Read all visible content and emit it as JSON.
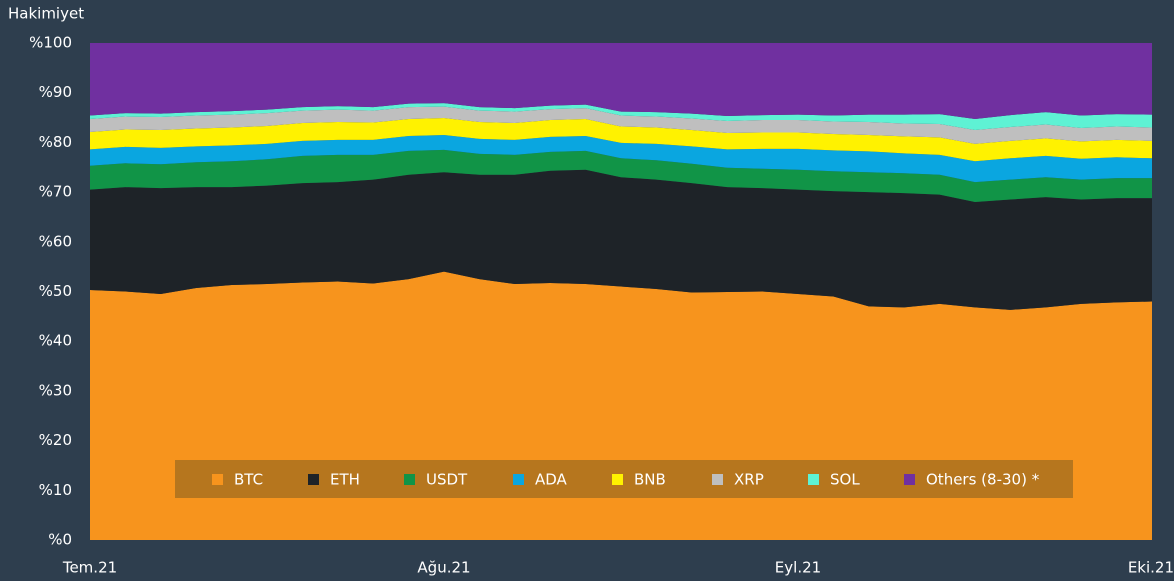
{
  "chart_data": {
    "type": "stacked-area",
    "y_axis_label": "Hakimiyet",
    "categories": [
      "Tem.21",
      null,
      null,
      null,
      null,
      null,
      null,
      null,
      null,
      null,
      "Ağu.21",
      null,
      null,
      null,
      null,
      null,
      null,
      null,
      null,
      null,
      "Eyl.21",
      null,
      null,
      null,
      null,
      null,
      null,
      null,
      null,
      null,
      "Eki.21"
    ],
    "ylim": [
      0,
      100
    ],
    "yticks": [
      {
        "value": 0,
        "label": "%0"
      },
      {
        "value": 10,
        "label": "%10"
      },
      {
        "value": 20,
        "label": "%20"
      },
      {
        "value": 30,
        "label": "%30"
      },
      {
        "value": 40,
        "label": "%40"
      },
      {
        "value": 50,
        "label": "%50"
      },
      {
        "value": 60,
        "label": "%60"
      },
      {
        "value": 70,
        "label": "%70"
      },
      {
        "value": 80,
        "label": "%80"
      },
      {
        "value": 90,
        "label": "%90"
      },
      {
        "value": 100,
        "label": "%100"
      }
    ],
    "legend": "bottom",
    "series": [
      {
        "name": "BTC",
        "color": "#f7941d",
        "values": [
          50.3,
          50,
          49.5,
          50.7,
          51.3,
          51.5,
          51.8,
          52,
          51.6,
          52.5,
          54,
          52.5,
          51.5,
          51.7,
          51.5,
          51,
          50.5,
          49.8,
          49.9,
          50,
          49.5,
          49,
          47,
          46.8,
          47.5,
          46.8,
          46.3,
          46.8,
          47.5,
          47.8,
          48
        ]
      },
      {
        "name": "ETH",
        "color": "#1e2328",
        "values": [
          20.2,
          21,
          21.3,
          20.3,
          19.7,
          19.8,
          20,
          20,
          20.9,
          21,
          20,
          21,
          22,
          22.6,
          23,
          22,
          22,
          22,
          21.1,
          20.8,
          21,
          21.2,
          23,
          23,
          22,
          21.2,
          22.2,
          22.2,
          21,
          21,
          20.8
        ]
      },
      {
        "name": "USDT",
        "color": "#119447",
        "values": [
          4.8,
          4.8,
          4.8,
          5,
          5.2,
          5.3,
          5.5,
          5.5,
          5,
          4.8,
          4.5,
          4.2,
          4,
          3.8,
          3.8,
          3.8,
          3.9,
          3.9,
          3.9,
          3.9,
          4,
          4,
          4,
          4,
          4,
          4,
          4,
          4,
          4,
          4,
          4
        ]
      },
      {
        "name": "ADA",
        "color": "#0aa6e0",
        "values": [
          3.3,
          3.3,
          3.3,
          3.2,
          3.2,
          3.1,
          3,
          3,
          3,
          3,
          3,
          3,
          3,
          3,
          3,
          3.1,
          3.3,
          3.5,
          3.7,
          4,
          4.2,
          4.2,
          4.2,
          4,
          4,
          4.2,
          4.3,
          4.3,
          4.2,
          4.2,
          4
        ]
      },
      {
        "name": "BNB",
        "color": "#fff200",
        "values": [
          3.5,
          3.5,
          3.6,
          3.6,
          3.6,
          3.6,
          3.6,
          3.6,
          3.5,
          3.4,
          3.4,
          3.4,
          3.4,
          3.4,
          3.4,
          3.3,
          3.3,
          3.3,
          3.3,
          3.3,
          3.3,
          3.3,
          3.3,
          3.4,
          3.5,
          3.5,
          3.5,
          3.5,
          3.5,
          3.5,
          3.5
        ]
      },
      {
        "name": "XRP",
        "color": "#bfbfbf",
        "values": [
          2.6,
          2.6,
          2.6,
          2.6,
          2.6,
          2.6,
          2.5,
          2.5,
          2.4,
          2.4,
          2.3,
          2.3,
          2.3,
          2.2,
          2.2,
          2.2,
          2.2,
          2.3,
          2.4,
          2.5,
          2.5,
          2.5,
          2.6,
          2.6,
          2.7,
          2.8,
          2.8,
          2.8,
          2.7,
          2.7,
          2.7
        ]
      },
      {
        "name": "SOL",
        "color": "#5ef2d4",
        "values": [
          0.7,
          0.7,
          0.7,
          0.7,
          0.7,
          0.7,
          0.7,
          0.7,
          0.7,
          0.7,
          0.7,
          0.7,
          0.7,
          0.7,
          0.7,
          0.8,
          0.9,
          1,
          1,
          1,
          1.1,
          1.2,
          1.5,
          1.8,
          2,
          2.2,
          2.4,
          2.5,
          2.5,
          2.5,
          2.6
        ]
      },
      {
        "name": "Others (8-30) *",
        "color": "#7030a0",
        "values": [
          14.6,
          14.1,
          14.2,
          13.9,
          13.7,
          13.4,
          12.9,
          12.7,
          12.9,
          12.2,
          12.1,
          12.9,
          13.1,
          12.6,
          12.4,
          13.8,
          13.9,
          14.2,
          14.7,
          14.5,
          14.4,
          14.6,
          14.4,
          14.4,
          14.3,
          15.3,
          14.5,
          13.9,
          14.6,
          14.3,
          14.4
        ]
      }
    ]
  }
}
